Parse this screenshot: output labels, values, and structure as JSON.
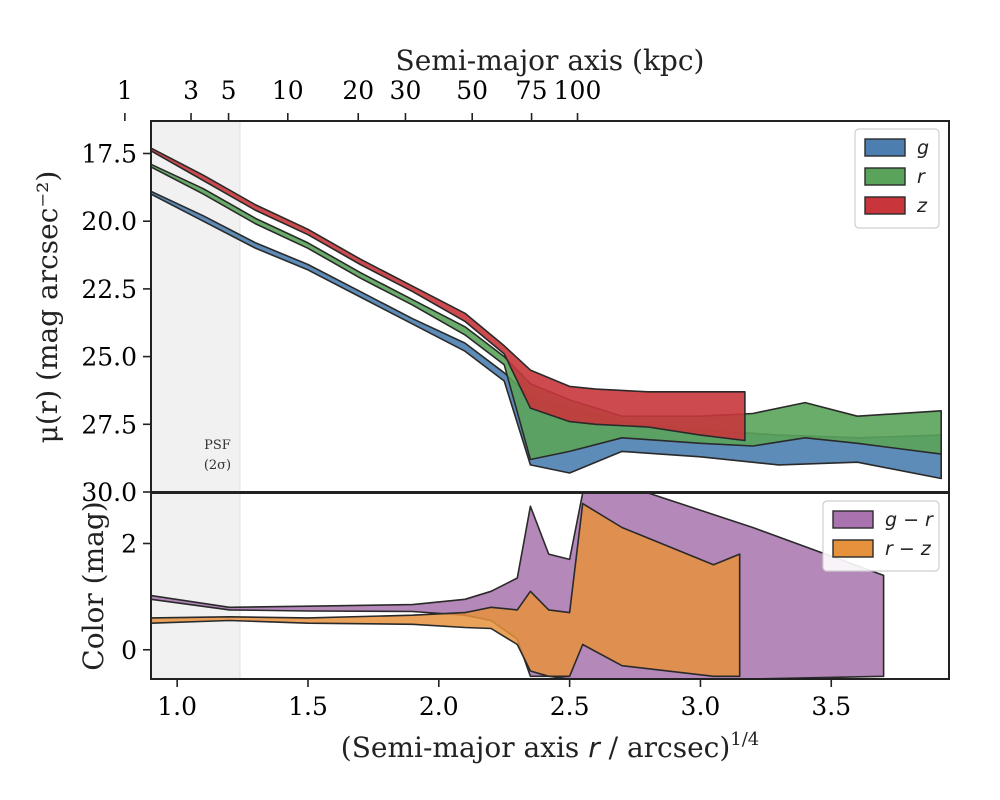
{
  "figure_title": "",
  "chart_data": [
    {
      "type": "area",
      "panel": "surface-brightness",
      "xlabel_top": "Semi-major axis (kpc)",
      "top_ticks": [
        {
          "label": "1",
          "kpc": 1
        },
        {
          "label": "3",
          "kpc": 3
        },
        {
          "label": "5",
          "kpc": 5
        },
        {
          "label": "10",
          "kpc": 10
        },
        {
          "label": "20",
          "kpc": 20
        },
        {
          "label": "30",
          "kpc": 30
        },
        {
          "label": "50",
          "kpc": 50
        },
        {
          "label": "75",
          "kpc": 75
        },
        {
          "label": "100",
          "kpc": 100
        }
      ],
      "ylabel": "μ(r) (mag arcsec⁻²)",
      "ylim": [
        30.0,
        16.3
      ],
      "y_inverted": true,
      "yticks": [
        "17.5",
        "20.0",
        "22.5",
        "25.0",
        "27.5",
        "30.0"
      ],
      "xlim": [
        0.9,
        3.95
      ],
      "psf_region": {
        "x_max": 1.24,
        "label_line1": "PSF",
        "label_line2": "(2σ)"
      },
      "legend": {
        "placement": "top-right",
        "entries": [
          "g",
          "r",
          "z"
        ]
      },
      "series": [
        {
          "name": "g",
          "color": "#4c7fb0",
          "upper": [
            [
              0.9,
              18.9
            ],
            [
              1.1,
              19.8
            ],
            [
              1.3,
              20.8
            ],
            [
              1.5,
              21.6
            ],
            [
              1.7,
              22.6
            ],
            [
              1.9,
              23.6
            ],
            [
              2.1,
              24.5
            ],
            [
              2.25,
              25.6
            ],
            [
              2.35,
              26.5
            ],
            [
              2.5,
              26.9
            ],
            [
              2.7,
              27.4
            ],
            [
              3.0,
              27.7
            ],
            [
              3.3,
              27.9
            ],
            [
              3.6,
              28.0
            ],
            [
              3.92,
              27.9
            ]
          ],
          "lower": [
            [
              3.92,
              29.5
            ],
            [
              3.6,
              28.9
            ],
            [
              3.3,
              29.0
            ],
            [
              3.0,
              28.7
            ],
            [
              2.7,
              28.5
            ],
            [
              2.5,
              29.3
            ],
            [
              2.35,
              29.0
            ],
            [
              2.25,
              25.9
            ],
            [
              2.1,
              24.8
            ],
            [
              1.9,
              23.8
            ],
            [
              1.7,
              22.8
            ],
            [
              1.5,
              21.8
            ],
            [
              1.3,
              21.0
            ],
            [
              1.1,
              20.0
            ],
            [
              0.9,
              19.0
            ]
          ]
        },
        {
          "name": "r",
          "color": "#5aa35a",
          "upper": [
            [
              0.9,
              17.9
            ],
            [
              1.1,
              18.8
            ],
            [
              1.3,
              19.9
            ],
            [
              1.5,
              20.8
            ],
            [
              1.7,
              21.9
            ],
            [
              1.9,
              22.9
            ],
            [
              2.1,
              23.9
            ],
            [
              2.25,
              25.0
            ],
            [
              2.35,
              26.0
            ],
            [
              2.5,
              26.6
            ],
            [
              2.7,
              27.2
            ],
            [
              3.0,
              27.2
            ],
            [
              3.2,
              27.1
            ],
            [
              3.4,
              26.7
            ],
            [
              3.6,
              27.2
            ],
            [
              3.92,
              27.0
            ]
          ],
          "lower": [
            [
              3.92,
              28.6
            ],
            [
              3.6,
              28.2
            ],
            [
              3.4,
              28.0
            ],
            [
              3.2,
              28.3
            ],
            [
              3.0,
              28.2
            ],
            [
              2.7,
              28.0
            ],
            [
              2.5,
              28.5
            ],
            [
              2.35,
              28.8
            ],
            [
              2.25,
              25.3
            ],
            [
              2.1,
              24.2
            ],
            [
              1.9,
              23.1
            ],
            [
              1.7,
              22.1
            ],
            [
              1.5,
              21.0
            ],
            [
              1.3,
              20.1
            ],
            [
              1.1,
              19.0
            ],
            [
              0.9,
              18.0
            ]
          ]
        },
        {
          "name": "z",
          "color": "#c8363b",
          "upper": [
            [
              0.9,
              17.3
            ],
            [
              1.1,
              18.3
            ],
            [
              1.3,
              19.4
            ],
            [
              1.5,
              20.3
            ],
            [
              1.7,
              21.4
            ],
            [
              1.9,
              22.4
            ],
            [
              2.1,
              23.4
            ],
            [
              2.25,
              24.6
            ],
            [
              2.35,
              25.5
            ],
            [
              2.5,
              26.1
            ],
            [
              2.6,
              26.2
            ],
            [
              2.8,
              26.3
            ],
            [
              3.0,
              26.3
            ],
            [
              3.17,
              26.3
            ]
          ],
          "lower": [
            [
              3.17,
              28.1
            ],
            [
              3.0,
              27.9
            ],
            [
              2.8,
              27.6
            ],
            [
              2.6,
              27.5
            ],
            [
              2.5,
              27.4
            ],
            [
              2.35,
              26.9
            ],
            [
              2.25,
              24.9
            ],
            [
              2.1,
              23.7
            ],
            [
              1.9,
              22.6
            ],
            [
              1.7,
              21.6
            ],
            [
              1.5,
              20.5
            ],
            [
              1.3,
              19.6
            ],
            [
              1.1,
              18.5
            ],
            [
              0.9,
              17.4
            ]
          ]
        }
      ]
    },
    {
      "type": "area",
      "panel": "color",
      "xlabel": "(Semi-major axis r / arcsec)¹ᐟ⁴",
      "ylabel": "Color (mag)",
      "ylim": [
        -0.55,
        2.95
      ],
      "yticks": [
        "0",
        "2"
      ],
      "xlim": [
        0.9,
        3.95
      ],
      "xticks": [
        "1.0",
        "1.5",
        "2.0",
        "2.5",
        "3.0",
        "3.5"
      ],
      "legend": {
        "placement": "top-right",
        "entries": [
          "g − r",
          "r − z"
        ]
      },
      "series": [
        {
          "name": "g − r",
          "color": "#a873ae",
          "upper": [
            [
              0.9,
              1.02
            ],
            [
              1.2,
              0.8
            ],
            [
              1.5,
              0.82
            ],
            [
              1.9,
              0.85
            ],
            [
              2.1,
              0.95
            ],
            [
              2.2,
              1.1
            ],
            [
              2.3,
              1.35
            ],
            [
              2.35,
              2.7
            ],
            [
              2.42,
              1.8
            ],
            [
              2.5,
              1.7
            ],
            [
              2.55,
              2.95
            ],
            [
              2.8,
              2.95
            ],
            [
              3.2,
              2.3
            ],
            [
              3.7,
              1.4
            ]
          ],
          "lower": [
            [
              3.7,
              -0.5
            ],
            [
              3.2,
              -0.55
            ],
            [
              2.8,
              -0.55
            ],
            [
              2.55,
              -0.55
            ],
            [
              2.5,
              -0.55
            ],
            [
              2.42,
              -0.5
            ],
            [
              2.35,
              -0.5
            ],
            [
              2.3,
              0.2
            ],
            [
              2.2,
              0.55
            ],
            [
              2.1,
              0.65
            ],
            [
              1.9,
              0.72
            ],
            [
              1.5,
              0.73
            ],
            [
              1.2,
              0.75
            ],
            [
              0.9,
              0.95
            ]
          ]
        },
        {
          "name": "r − z",
          "color": "#e6913c",
          "upper": [
            [
              0.9,
              0.6
            ],
            [
              1.2,
              0.62
            ],
            [
              1.5,
              0.6
            ],
            [
              1.9,
              0.65
            ],
            [
              2.1,
              0.7
            ],
            [
              2.2,
              0.8
            ],
            [
              2.3,
              0.75
            ],
            [
              2.35,
              1.1
            ],
            [
              2.42,
              0.75
            ],
            [
              2.5,
              0.7
            ],
            [
              2.55,
              2.75
            ],
            [
              2.7,
              2.3
            ],
            [
              3.05,
              1.6
            ],
            [
              3.15,
              1.8
            ]
          ],
          "lower": [
            [
              3.15,
              -0.5
            ],
            [
              3.05,
              -0.5
            ],
            [
              2.7,
              -0.3
            ],
            [
              2.55,
              0.1
            ],
            [
              2.5,
              -0.5
            ],
            [
              2.42,
              -0.5
            ],
            [
              2.35,
              -0.4
            ],
            [
              2.3,
              0.1
            ],
            [
              2.2,
              0.4
            ],
            [
              2.1,
              0.42
            ],
            [
              1.9,
              0.48
            ],
            [
              1.5,
              0.5
            ],
            [
              1.2,
              0.55
            ],
            [
              0.9,
              0.5
            ]
          ]
        }
      ]
    }
  ]
}
